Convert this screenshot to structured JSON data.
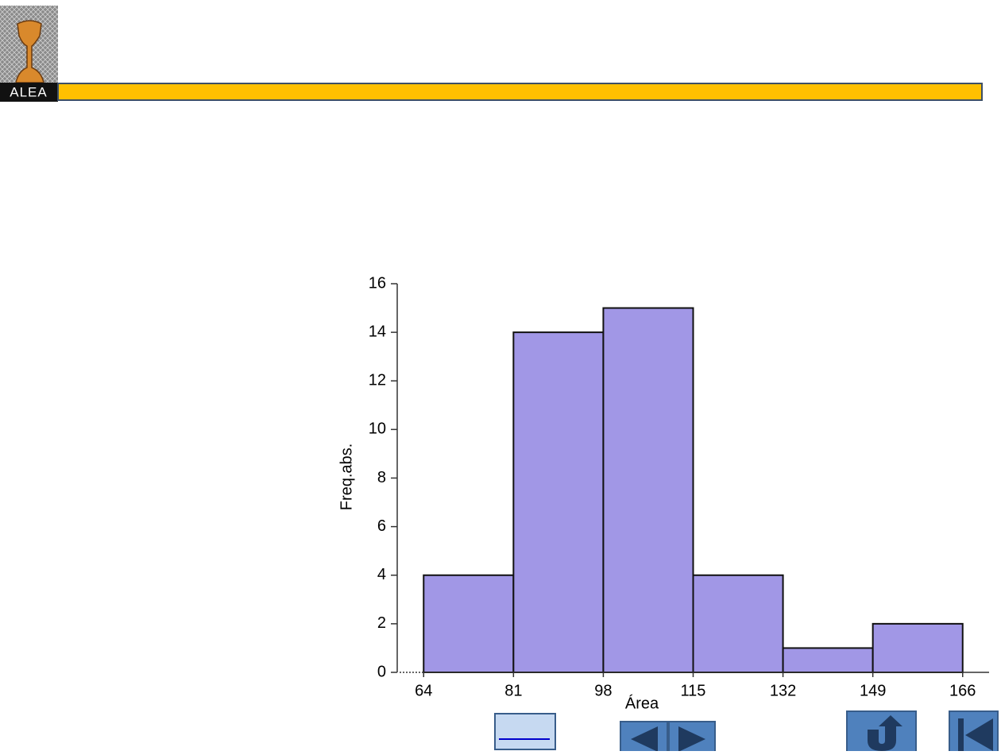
{
  "logo": "ALEA",
  "chart_data": {
    "type": "histogram",
    "bins": [
      64,
      81,
      98,
      115,
      132,
      149,
      166
    ],
    "values": [
      4,
      14,
      15,
      4,
      1,
      2
    ],
    "color": "#a197e6",
    "xlabel": "Área",
    "ylabel": "Freq.abs.",
    "xlim": [
      59,
      171
    ],
    "xticks": [
      64,
      81,
      98,
      115,
      132,
      149,
      166
    ],
    "ylim": [
      0,
      16
    ],
    "yticks": [
      0,
      2,
      4,
      6,
      8,
      10,
      12,
      14,
      16
    ]
  }
}
